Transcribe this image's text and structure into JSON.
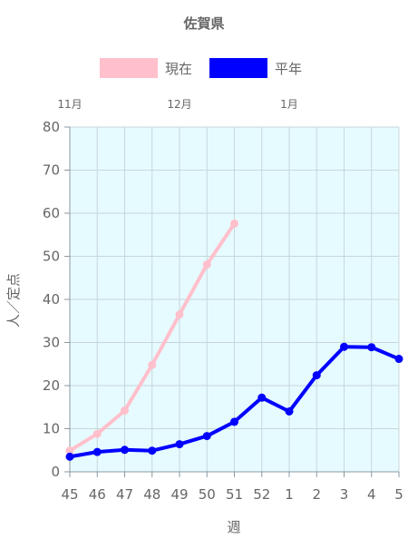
{
  "chart_data": {
    "type": "line",
    "title": "佐賀県",
    "xlabel": "週",
    "ylabel": "人／定点",
    "ylim": [
      0,
      80
    ],
    "yticks": [
      0,
      10,
      20,
      30,
      40,
      50,
      60,
      70,
      80
    ],
    "categories": [
      "45",
      "46",
      "47",
      "48",
      "49",
      "50",
      "51",
      "52",
      "1",
      "2",
      "3",
      "4",
      "5"
    ],
    "month_labels": [
      {
        "label": "11月",
        "at_category": "45"
      },
      {
        "label": "12月",
        "at_category": "49"
      },
      {
        "label": "1月",
        "at_category": "1"
      }
    ],
    "grid": true,
    "legend_position": "top-center",
    "plot_background": "#e6fbff",
    "series": [
      {
        "name": "現在",
        "color": "#ffc0cb",
        "values": [
          4.9,
          8.8,
          14.2,
          24.8,
          36.5,
          48.1,
          57.6,
          null,
          null,
          null,
          null,
          null,
          null
        ]
      },
      {
        "name": "平年",
        "color": "#0000ff",
        "values": [
          3.5,
          4.6,
          5.1,
          4.9,
          6.4,
          8.3,
          11.6,
          17.2,
          14.0,
          22.4,
          29.0,
          28.9,
          26.2
        ]
      }
    ]
  }
}
